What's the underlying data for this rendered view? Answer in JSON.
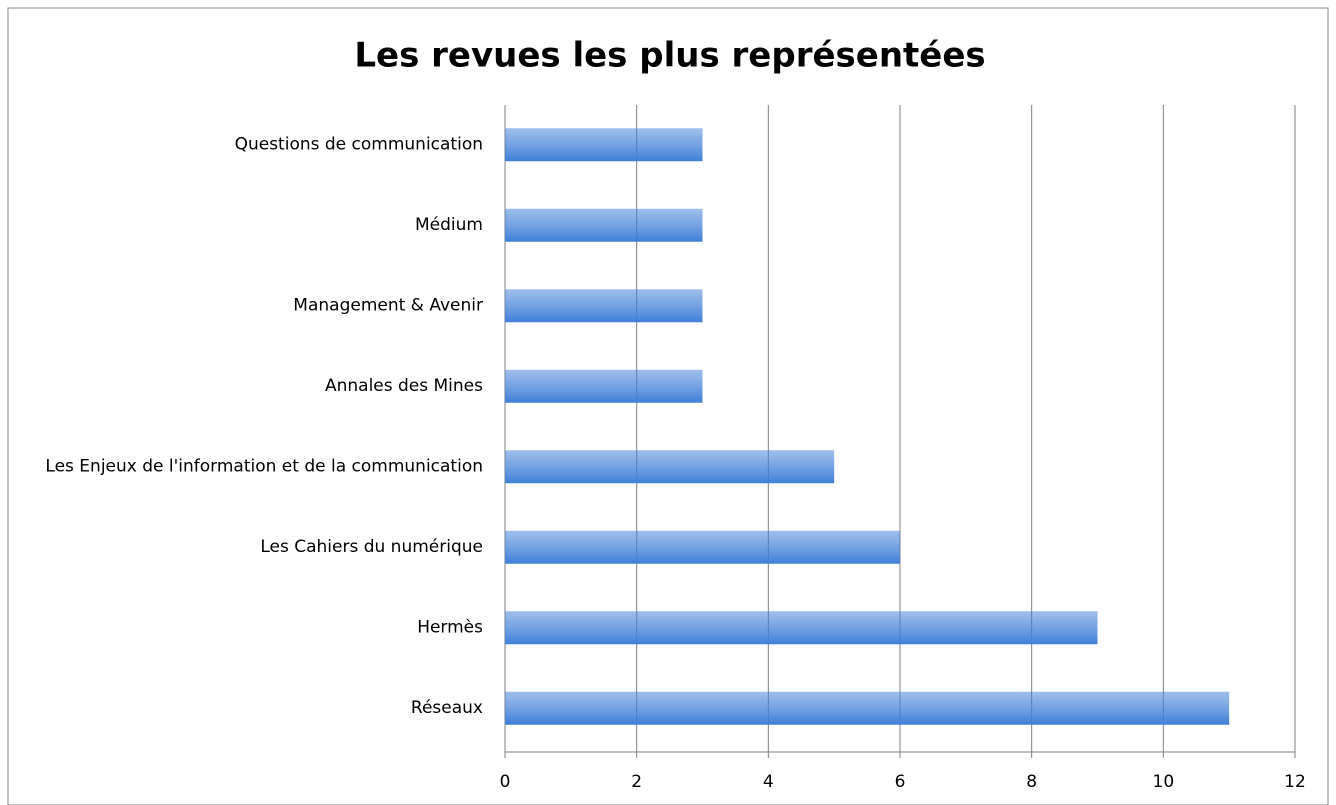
{
  "chart_data": {
    "type": "hbar",
    "title": "Les revues les plus représentées",
    "categories": [
      "Questions de communication",
      "Médium",
      "Management & Avenir",
      "Annales des Mines",
      "Les Enjeux de l'information et de la communication",
      "Les Cahiers du numérique",
      "Hermès",
      "Réseaux"
    ],
    "values": [
      3,
      3,
      3,
      3,
      5,
      6,
      9,
      11
    ],
    "color": "#3f7fd8",
    "xlim": [
      0,
      12
    ],
    "xticks": [
      0,
      2,
      4,
      6,
      8,
      10,
      12
    ],
    "grid": true
  }
}
